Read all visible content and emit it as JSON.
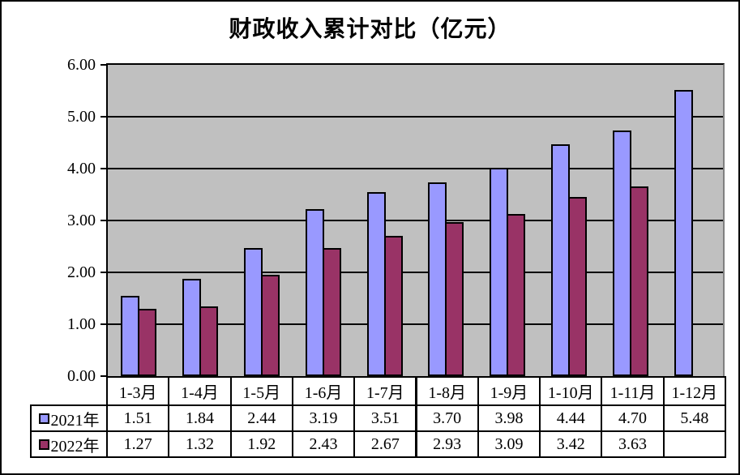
{
  "chart_data": {
    "type": "bar",
    "title": "财政收入累计对比（亿元）",
    "categories": [
      "1-3月",
      "1-4月",
      "1-5月",
      "1-6月",
      "1-7月",
      "1-8月",
      "1-9月",
      "1-10月",
      "1-11月",
      "1-12月"
    ],
    "series": [
      {
        "name": "2021年",
        "color": "#9999FF",
        "values": [
          1.51,
          1.84,
          2.44,
          3.19,
          3.51,
          3.7,
          3.98,
          4.44,
          4.7,
          5.48
        ]
      },
      {
        "name": "2022年",
        "color": "#993366",
        "values": [
          1.27,
          1.32,
          1.92,
          2.43,
          2.67,
          2.93,
          3.09,
          3.42,
          3.63,
          null
        ]
      }
    ],
    "xlabel": "",
    "ylabel": "",
    "ylim": [
      0,
      6
    ],
    "ytick_step": 1,
    "ytick_labels": [
      "6.00",
      "5.00",
      "4.00",
      "3.00",
      "2.00",
      "1.00",
      "0.00"
    ],
    "grid": true,
    "gridline_color": "#000000",
    "plot_background": "#C0C0C0",
    "bar_border_color": "#000000",
    "legend_position": "table-rows-left",
    "value_decimals": 2,
    "empty_cell_text": ""
  }
}
